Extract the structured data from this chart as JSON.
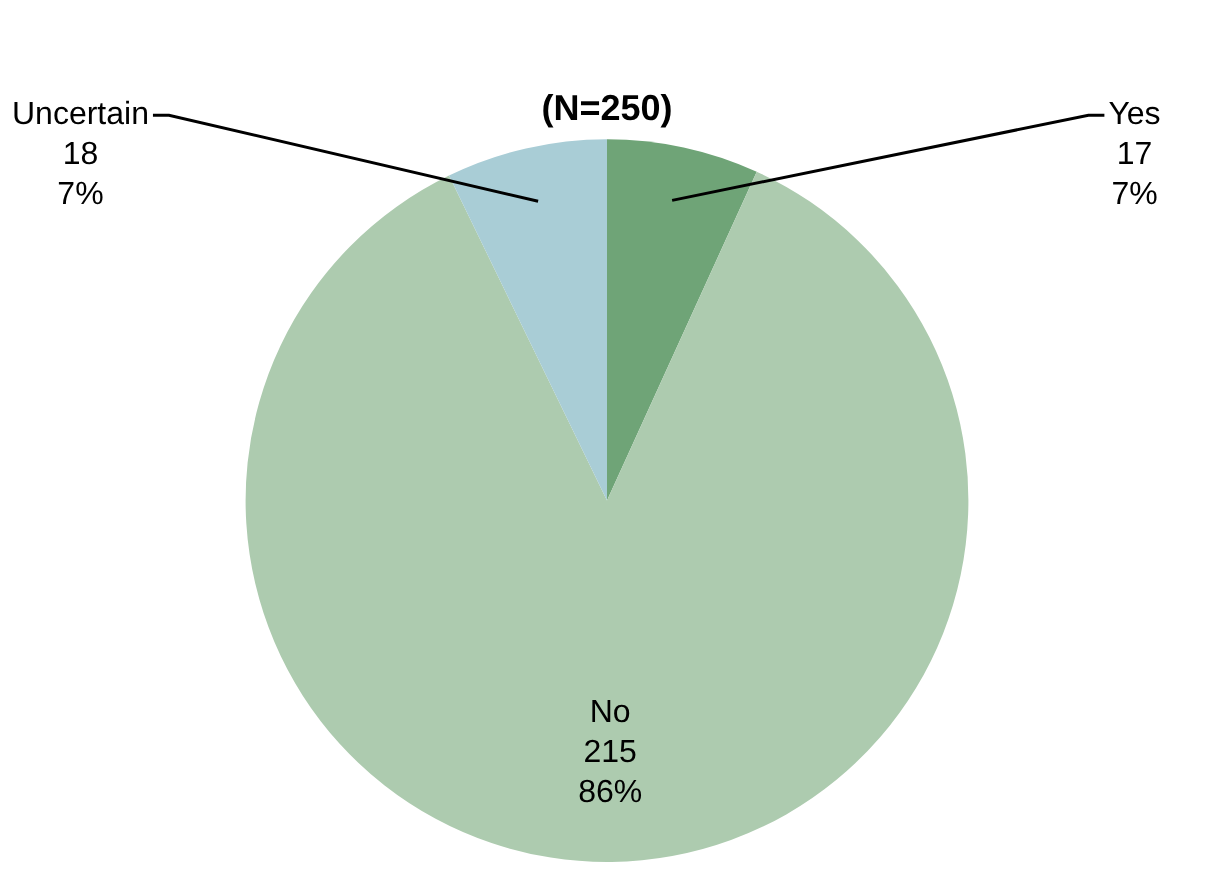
{
  "chart_data": {
    "type": "pie",
    "title": "(N=250)",
    "categories": [
      "Yes",
      "No",
      "Uncertain"
    ],
    "values": [
      17,
      215,
      18
    ],
    "colors": [
      "#6fa477",
      "#adcbaf",
      "#a9cdd6"
    ],
    "value_labels": [
      "17\n7%",
      "215\n86%",
      "18\n7%"
    ],
    "legend": false
  }
}
